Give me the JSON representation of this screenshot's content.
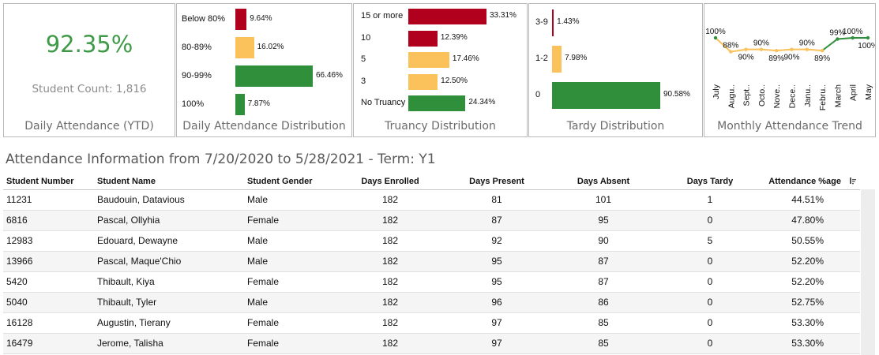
{
  "kpi": {
    "value": "92.35%",
    "student_count": "Student Count: 1,816",
    "title": "Daily Attendance (YTD)"
  },
  "distribution": {
    "title": "Daily Attendance Distribution",
    "items": [
      {
        "label": "Below 80%",
        "value_label": "9.64%",
        "value": 9.64,
        "color": "#b0001e"
      },
      {
        "label": "80-89%",
        "value_label": "16.02%",
        "value": 16.02,
        "color": "#fbc15a"
      },
      {
        "label": "90-99%",
        "value_label": "66.46%",
        "value": 66.46,
        "color": "#2f8f3b"
      },
      {
        "label": "100%",
        "value_label": "7.87%",
        "value": 7.87,
        "color": "#2f8f3b"
      }
    ]
  },
  "truancy": {
    "title": "Truancy Distribution",
    "items": [
      {
        "label": "15 or more",
        "value_label": "33.31%",
        "value": 33.31,
        "color": "#b0001e"
      },
      {
        "label": "10",
        "value_label": "12.39%",
        "value": 12.39,
        "color": "#b0001e"
      },
      {
        "label": "5",
        "value_label": "17.46%",
        "value": 17.46,
        "color": "#fbc15a"
      },
      {
        "label": "3",
        "value_label": "12.50%",
        "value": 12.5,
        "color": "#fbc15a"
      },
      {
        "label": "No Truancy",
        "value_label": "24.34%",
        "value": 24.34,
        "color": "#2f8f3b"
      }
    ]
  },
  "tardy": {
    "title": "Tardy Distribution",
    "items": [
      {
        "label": "3-9",
        "value_label": "1.43%",
        "value": 1.43,
        "color": "#b0001e"
      },
      {
        "label": "1-2",
        "value_label": "7.98%",
        "value": 7.98,
        "color": "#fbc15a"
      },
      {
        "label": "0",
        "value_label": "90.58%",
        "value": 90.58,
        "color": "#2f8f3b"
      }
    ]
  },
  "trend": {
    "title": "Monthly Attendance Trend",
    "months": [
      "July",
      "Augu..",
      "Sept..",
      "Octo..",
      "Nove..",
      "Dece..",
      "Janu..",
      "Febru..",
      "March",
      "April",
      "May"
    ],
    "values": [
      100,
      88,
      90,
      90,
      89,
      90,
      90,
      89,
      99,
      100,
      100
    ],
    "labels": [
      "100%",
      "88%",
      "90%",
      "90%",
      "89%",
      "90%",
      "90%",
      "89%",
      "99%",
      "100%",
      "100%"
    ],
    "label_position": [
      "above",
      "above",
      "below",
      "above",
      "below",
      "below",
      "above",
      "below",
      "above",
      "above",
      "below"
    ],
    "colors": {
      "high": "#2f8f3b",
      "low": "#fbc15a"
    }
  },
  "table": {
    "title": "Attendance Information from 7/20/2020 to 5/28/2021 - Term: Y1",
    "headers": {
      "student_number": "Student Number",
      "student_name": "Student Name",
      "gender": "Student Gender",
      "enrolled": "Days  Enrolled",
      "present": "Days  Present",
      "absent": "Days  Absent",
      "tardy": "Days  Tardy",
      "pct": "Attendance %age"
    },
    "rows": [
      {
        "number": "11231",
        "name": "Baudouin, Datavious",
        "gender": "Male",
        "enrolled": "182",
        "present": "81",
        "absent": "101",
        "tardy": "1",
        "pct": "44.51%"
      },
      {
        "number": "6816",
        "name": "Pascal, Ollyhia",
        "gender": "Female",
        "enrolled": "182",
        "present": "87",
        "absent": "95",
        "tardy": "0",
        "pct": "47.80%"
      },
      {
        "number": "12983",
        "name": "Edouard, Dewayne",
        "gender": "Male",
        "enrolled": "182",
        "present": "92",
        "absent": "90",
        "tardy": "5",
        "pct": "50.55%"
      },
      {
        "number": "13966",
        "name": "Pascal, Maque'Chio",
        "gender": "Male",
        "enrolled": "182",
        "present": "95",
        "absent": "87",
        "tardy": "0",
        "pct": "52.20%"
      },
      {
        "number": "5420",
        "name": "Thibault, Kiya",
        "gender": "Female",
        "enrolled": "182",
        "present": "95",
        "absent": "87",
        "tardy": "0",
        "pct": "52.20%"
      },
      {
        "number": "5040",
        "name": "Thibault, Tyler",
        "gender": "Male",
        "enrolled": "182",
        "present": "96",
        "absent": "86",
        "tardy": "0",
        "pct": "52.75%"
      },
      {
        "number": "16128",
        "name": "Augustin, Tierany",
        "gender": "Female",
        "enrolled": "182",
        "present": "97",
        "absent": "85",
        "tardy": "0",
        "pct": "53.30%"
      },
      {
        "number": "16479",
        "name": "Jerome, Talisha",
        "gender": "Female",
        "enrolled": "182",
        "present": "97",
        "absent": "85",
        "tardy": "0",
        "pct": "53.30%"
      }
    ]
  },
  "icons": {
    "sort": "sort-descending-icon"
  }
}
